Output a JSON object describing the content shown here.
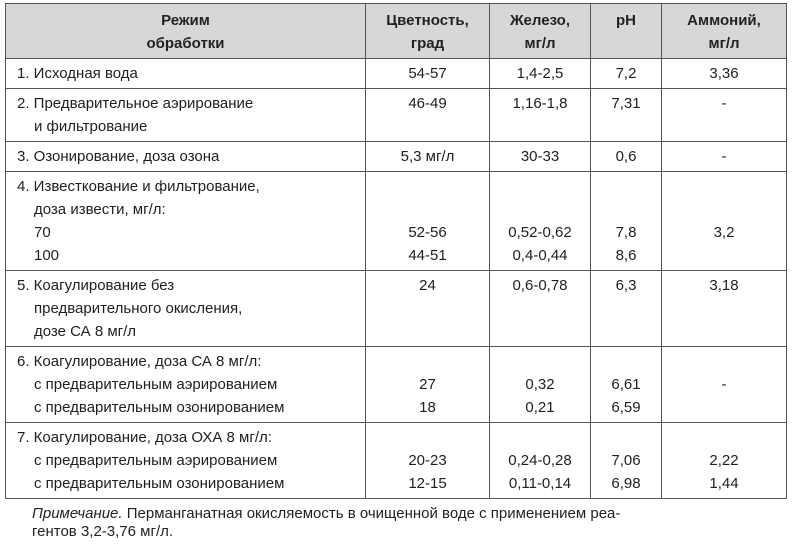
{
  "headers": {
    "mode": [
      "Режим",
      "обработки"
    ],
    "color": [
      "Цветность,",
      "град"
    ],
    "iron": [
      "Железо,",
      "мг/л"
    ],
    "ph": [
      "pH"
    ],
    "ammonium": [
      "Аммоний,",
      "мг/л"
    ]
  },
  "rows": [
    {
      "label": [
        "1. Исходная вода"
      ],
      "color": [
        "54-57"
      ],
      "iron": [
        "1,4-2,5"
      ],
      "ph": [
        "7,2"
      ],
      "ammonium": [
        "3,36"
      ]
    },
    {
      "label": [
        "2. Предварительное аэрирование",
        "и фильтрование"
      ],
      "color": [
        "46-49"
      ],
      "iron": [
        "1,16-1,8"
      ],
      "ph": [
        "7,31"
      ],
      "ammonium": [
        "-"
      ]
    },
    {
      "label": [
        "3. Озонирование, доза озона"
      ],
      "color": [
        "5,3 мг/л"
      ],
      "iron": [
        "30-33"
      ],
      "ph": [
        "0,6"
      ],
      "ammonium": [
        "-"
      ]
    },
    {
      "label": [
        "4. Известкование и фильтрование,",
        "доза извести, мг/л:",
        "70",
        "100"
      ],
      "color": [
        "",
        "",
        "52-56",
        "44-51"
      ],
      "iron": [
        "",
        "",
        "0,52-0,62",
        "0,4-0,44"
      ],
      "ph": [
        "",
        "",
        "7,8",
        "8,6"
      ],
      "ammonium": [
        "",
        "",
        "3,2",
        ""
      ]
    },
    {
      "label": [
        "5. Коагулирование без",
        "предварительного окисления,",
        "дозе СА 8 мг/л"
      ],
      "color": [
        "24"
      ],
      "iron": [
        "0,6-0,78"
      ],
      "ph": [
        "6,3"
      ],
      "ammonium": [
        "3,18"
      ]
    },
    {
      "label": [
        "6. Коагулирование, доза СА 8 мг/л:",
        "с предварительным аэрированием",
        "с предварительным озонированием"
      ],
      "color": [
        "",
        "27",
        "18"
      ],
      "iron": [
        "",
        "0,32",
        "0,21"
      ],
      "ph": [
        "",
        "6,61",
        "6,59"
      ],
      "ammonium": [
        "",
        "-",
        ""
      ]
    },
    {
      "label": [
        "7. Коагулирование,  доза ОХА 8 мг/л:",
        "с предварительным аэрированием",
        "с предварительным озонированием"
      ],
      "color": [
        "",
        "20-23",
        "12-15"
      ],
      "iron": [
        "",
        "0,24-0,28",
        "0,11-0,14"
      ],
      "ph": [
        "",
        "7,06",
        "6,98"
      ],
      "ammonium": [
        "",
        "2,22",
        "1,44"
      ]
    }
  ],
  "note": {
    "prefix": "Примечание.",
    "line1": " Перманганатная окисляемость в очищенной воде с применением реа-",
    "line2": "гентов 3,2-3,76 мг/л."
  }
}
